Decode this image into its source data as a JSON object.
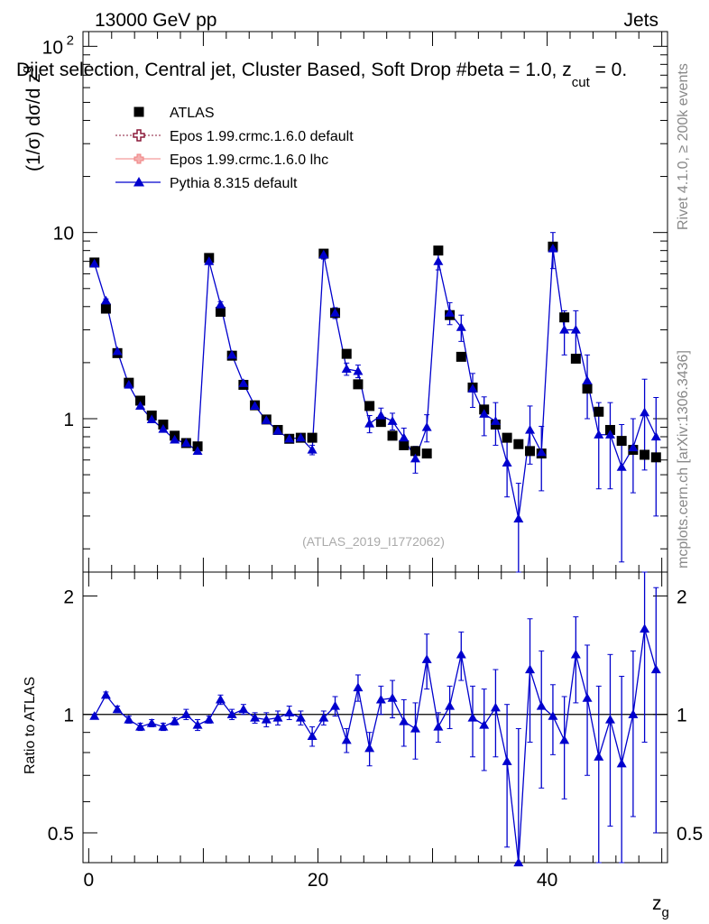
{
  "header": {
    "left_title": "13000 GeV pp",
    "right_title": "Jets",
    "plot_title": "Dijet selection, Central jet, Cluster Based, Soft Drop #beta = 1.0, z",
    "plot_title_sub": "cut",
    "plot_title_tail": " = 0.",
    "side_label_top": "Rivet 4.1.0, ≥ 200k events",
    "side_label_bottom": "mcplots.cern.ch [arXiv:1306.3436]",
    "analysis_id": "(ATLAS_2019_I1772062)"
  },
  "legend": {
    "items": [
      {
        "label": "ATLAS",
        "color": "#000000",
        "marker": "square"
      },
      {
        "label": "Epos 1.99.crmc.1.6.0 default",
        "color": "#8b1a3a",
        "marker": "open-cross"
      },
      {
        "label": "Epos 1.99.crmc.1.6.0 lhc",
        "color": "#f08080",
        "marker": "cross"
      },
      {
        "label": "Pythia 8.315 default",
        "color": "#0000cd",
        "marker": "triangle"
      }
    ]
  },
  "axes": {
    "main_ylabel": "(1/σ) dσ/d z",
    "main_ylabel_sub": "g",
    "ratio_ylabel": "Ratio to ATLAS",
    "xlabel": "z",
    "xlabel_sub": "g",
    "main_yticks": [
      {
        "value": 1,
        "label": "1"
      },
      {
        "value": 10,
        "label": "10"
      },
      {
        "value": 100,
        "label": "10",
        "sup": "2"
      }
    ],
    "ratio_yticks": [
      {
        "value": 0.5,
        "label": "0.5"
      },
      {
        "value": 1,
        "label": "1"
      },
      {
        "value": 2,
        "label": "2"
      }
    ],
    "xticks": [
      {
        "value": 0,
        "label": "0"
      },
      {
        "value": 20,
        "label": "20"
      },
      {
        "value": 40,
        "label": "40"
      }
    ]
  },
  "chart_data": [
    {
      "type": "scatter",
      "title": "Dijet selection, Central jet, Cluster Based, Soft Drop #beta = 1.0, z_cut = 0.",
      "xlabel": "z_g",
      "ylabel": "(1/σ) dσ/d z_g",
      "xlim": [
        -0.5,
        50.5
      ],
      "ylim": [
        0.15,
        120
      ],
      "yscale": "log",
      "x": [
        0.5,
        1.5,
        2.5,
        3.5,
        4.5,
        5.5,
        6.5,
        7.5,
        8.5,
        9.5,
        10.5,
        11.5,
        12.5,
        13.5,
        14.5,
        15.5,
        16.5,
        17.5,
        18.5,
        19.5,
        20.5,
        21.5,
        22.5,
        23.5,
        24.5,
        25.5,
        26.5,
        27.5,
        28.5,
        29.5,
        30.5,
        31.5,
        32.5,
        33.5,
        34.5,
        35.5,
        36.5,
        37.5,
        38.5,
        39.5,
        40.5,
        41.5,
        42.5,
        43.5,
        44.5,
        45.5,
        46.5,
        47.5,
        48.5,
        49.5
      ],
      "series": [
        {
          "name": "ATLAS",
          "values": [
            6.9,
            3.9,
            2.25,
            1.56,
            1.25,
            1.04,
            0.93,
            0.81,
            0.74,
            0.71,
            7.3,
            3.75,
            2.18,
            1.52,
            1.18,
            0.99,
            0.87,
            0.78,
            0.79,
            0.79,
            7.7,
            3.7,
            2.23,
            1.53,
            1.17,
            0.96,
            0.81,
            0.72,
            0.67,
            0.65,
            8.0,
            3.6,
            2.15,
            1.47,
            1.12,
            0.93,
            0.79,
            0.73,
            0.67,
            0.65,
            8.4,
            3.5,
            2.1,
            1.45,
            1.09,
            0.87,
            0.76,
            0.68,
            0.64,
            0.62
          ]
        },
        {
          "name": "Pythia 8.315 default",
          "values": [
            6.8,
            4.3,
            2.3,
            1.52,
            1.17,
            0.99,
            0.88,
            0.77,
            0.74,
            0.67,
            7.0,
            4.1,
            2.2,
            1.55,
            1.17,
            0.98,
            0.86,
            0.78,
            0.79,
            0.68,
            7.6,
            3.7,
            1.85,
            1.8,
            0.94,
            1.04,
            0.97,
            0.79,
            0.61,
            0.9,
            7.0,
            3.7,
            3.1,
            1.45,
            1.06,
            0.97,
            0.58,
            0.29,
            0.87,
            0.66,
            8.2,
            3.0,
            3.0,
            1.6,
            0.82,
            0.82,
            0.55,
            0.7,
            1.08,
            0.8
          ],
          "errors": [
            0.1,
            0.1,
            0.06,
            0.04,
            0.03,
            0.03,
            0.03,
            0.02,
            0.02,
            0.02,
            0.25,
            0.15,
            0.08,
            0.05,
            0.04,
            0.04,
            0.03,
            0.03,
            0.04,
            0.04,
            0.4,
            0.25,
            0.14,
            0.14,
            0.1,
            0.1,
            0.1,
            0.1,
            0.1,
            0.15,
            0.7,
            0.5,
            0.5,
            0.3,
            0.25,
            0.25,
            0.2,
            0.16,
            0.3,
            0.25,
            1.8,
            0.8,
            0.8,
            0.6,
            0.4,
            0.4,
            0.38,
            0.3,
            0.55,
            0.5
          ]
        }
      ]
    },
    {
      "type": "scatter",
      "title": "Ratio to ATLAS",
      "xlabel": "z_g",
      "ylabel": "Ratio to ATLAS",
      "xlim": [
        -0.5,
        50.5
      ],
      "ylim": [
        0.42,
        2.3
      ],
      "yscale": "log",
      "x": [
        0.5,
        1.5,
        2.5,
        3.5,
        4.5,
        5.5,
        6.5,
        7.5,
        8.5,
        9.5,
        10.5,
        11.5,
        12.5,
        13.5,
        14.5,
        15.5,
        16.5,
        17.5,
        18.5,
        19.5,
        20.5,
        21.5,
        22.5,
        23.5,
        24.5,
        25.5,
        26.5,
        27.5,
        28.5,
        29.5,
        30.5,
        31.5,
        32.5,
        33.5,
        34.5,
        35.5,
        36.5,
        37.5,
        38.5,
        39.5,
        40.5,
        41.5,
        42.5,
        43.5,
        44.5,
        45.5,
        46.5,
        47.5,
        48.5,
        49.5
      ],
      "reference": 1.0,
      "series": [
        {
          "name": "Pythia 8.315 default",
          "values": [
            0.99,
            1.12,
            1.03,
            0.97,
            0.93,
            0.95,
            0.93,
            0.96,
            1.0,
            0.94,
            0.97,
            1.09,
            1.0,
            1.03,
            0.98,
            0.97,
            0.98,
            1.01,
            0.98,
            0.88,
            0.98,
            1.05,
            0.86,
            1.17,
            0.82,
            1.09,
            1.1,
            0.96,
            0.92,
            1.38,
            0.93,
            1.05,
            1.42,
            0.98,
            0.94,
            1.04,
            0.76,
            0.42,
            1.3,
            1.05,
            0.99,
            0.86,
            1.42,
            1.1,
            0.78,
            0.97,
            0.75,
            1.0,
            1.65,
            1.3
          ],
          "errors": [
            0.01,
            0.02,
            0.02,
            0.02,
            0.02,
            0.02,
            0.02,
            0.02,
            0.03,
            0.03,
            0.02,
            0.03,
            0.03,
            0.03,
            0.03,
            0.04,
            0.04,
            0.04,
            0.04,
            0.05,
            0.04,
            0.06,
            0.06,
            0.09,
            0.08,
            0.09,
            0.12,
            0.13,
            0.15,
            0.22,
            0.08,
            0.13,
            0.2,
            0.2,
            0.22,
            0.26,
            0.3,
            0.5,
            0.45,
            0.4,
            0.2,
            0.25,
            0.35,
            0.4,
            0.4,
            0.45,
            0.5,
            0.45,
            0.8,
            0.8
          ]
        }
      ]
    }
  ]
}
